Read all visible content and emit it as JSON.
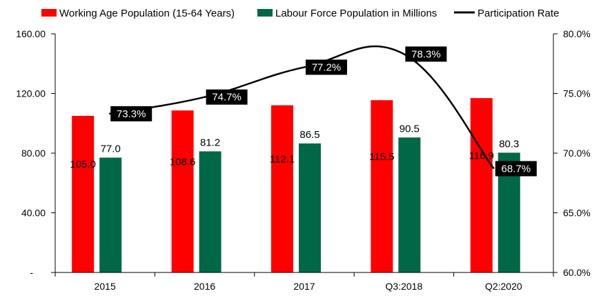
{
  "chart_data": {
    "type": "bar",
    "categories": [
      "2015",
      "2016",
      "2017",
      "Q3:2018",
      "Q2:2020"
    ],
    "series": [
      {
        "name": "Working Age Population (15-64 Years)",
        "kind": "bar",
        "axis": "left",
        "color": "#ff0000",
        "values": [
          105.0,
          108.6,
          112.1,
          115.5,
          116.9
        ],
        "labels": [
          "105.0",
          "108.6",
          "112.1",
          "115.5",
          "116.9"
        ]
      },
      {
        "name": "Labour Force Population in Millions",
        "kind": "bar",
        "axis": "left",
        "color": "#006747",
        "values": [
          77.0,
          81.2,
          86.5,
          90.5,
          80.3
        ],
        "labels": [
          "77.0",
          "81.2",
          "86.5",
          "90.5",
          "80.3"
        ]
      },
      {
        "name": "Participation Rate",
        "kind": "line",
        "axis": "right",
        "color": "#000000",
        "values": [
          73.3,
          74.7,
          77.2,
          78.3,
          68.7
        ],
        "labels": [
          "73.3%",
          "74.7%",
          "77.2%",
          "78.3%",
          "68.7%"
        ]
      }
    ],
    "y_left": {
      "min": 0,
      "max": 160,
      "ticks": [
        0,
        40,
        80,
        120,
        160
      ],
      "tick_labels": [
        "-",
        "40.00",
        "80.00",
        "120.00",
        "160.00"
      ]
    },
    "y_right": {
      "min": 60,
      "max": 80,
      "ticks": [
        60,
        65,
        70,
        75,
        80
      ],
      "tick_labels": [
        "60.0%",
        "65.0%",
        "70.0%",
        "75.0%",
        "80.0%"
      ]
    },
    "legend_position": "top",
    "grid": false
  }
}
